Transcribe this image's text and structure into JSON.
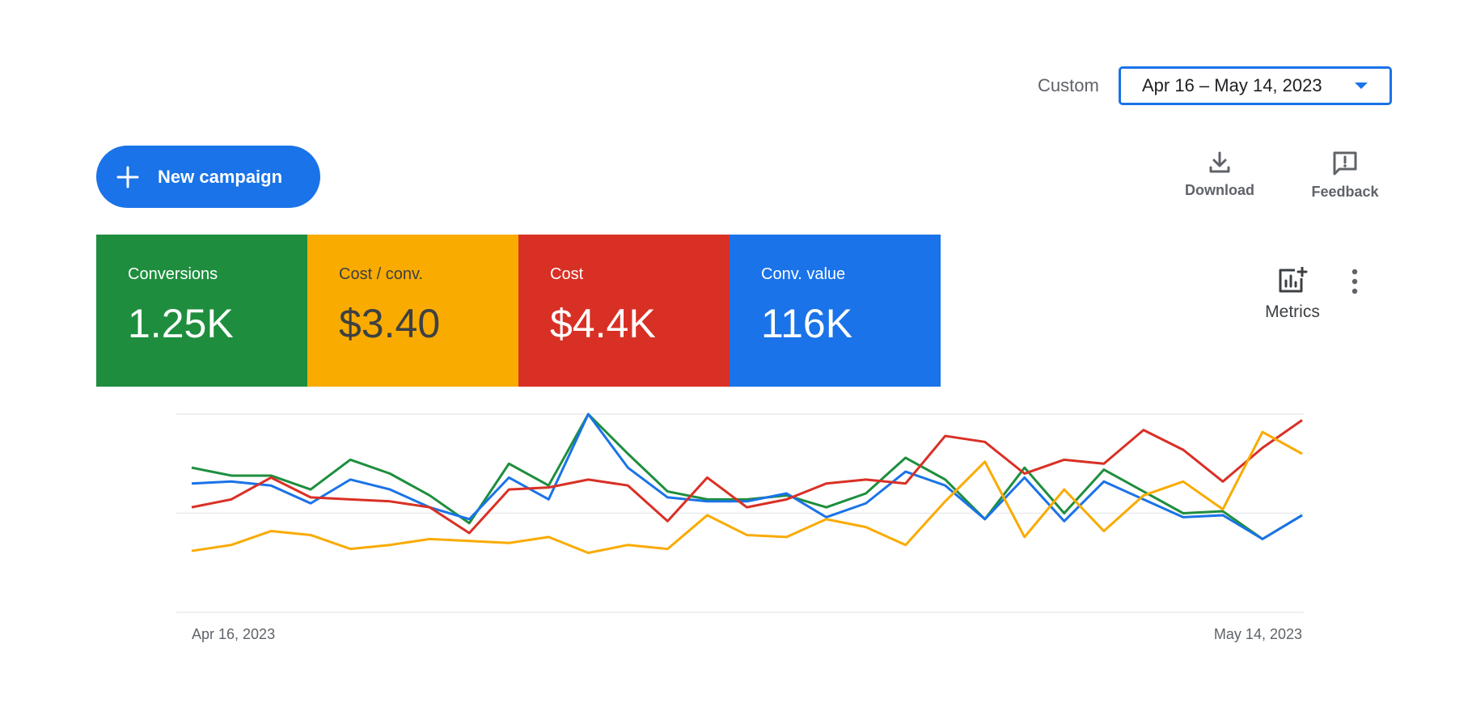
{
  "date_range": {
    "mode_label": "Custom",
    "value": "Apr 16 – May 14, 2023"
  },
  "toolbar": {
    "new_campaign_label": "New campaign",
    "download_label": "Download",
    "feedback_label": "Feedback",
    "metrics_label": "Metrics"
  },
  "scorecards": [
    {
      "title": "Conversions",
      "value": "1.25K",
      "color": "#1e8e3e"
    },
    {
      "title": "Cost / conv.",
      "value": "$3.40",
      "color": "#f9ab00"
    },
    {
      "title": "Cost",
      "value": "$4.4K",
      "color": "#d93025"
    },
    {
      "title": "Conv. value",
      "value": "116K",
      "color": "#1a73e8"
    }
  ],
  "icons": {
    "add": "plus-icon",
    "download": "download-icon",
    "feedback": "feedback-icon",
    "metrics": "add-chart-icon",
    "more": "more-vert-icon",
    "caret": "caret-down-icon"
  },
  "chart_data": {
    "type": "line",
    "x_start_label": "Apr 16, 2023",
    "x_end_label": "May 14, 2023",
    "x": [
      "Apr 16",
      "Apr 17",
      "Apr 18",
      "Apr 19",
      "Apr 20",
      "Apr 21",
      "Apr 22",
      "Apr 23",
      "Apr 24",
      "Apr 25",
      "Apr 26",
      "Apr 27",
      "Apr 28",
      "Apr 29",
      "Apr 30",
      "May 1",
      "May 2",
      "May 3",
      "May 4",
      "May 5",
      "May 6",
      "May 7",
      "May 8",
      "May 9",
      "May 10",
      "May 11",
      "May 12",
      "May 13",
      "May 14"
    ],
    "ylim": [
      0,
      100
    ],
    "grid": true,
    "series": [
      {
        "color": "#1e8e3e",
        "values": [
          73,
          69,
          69,
          62,
          77,
          70,
          59,
          45,
          75,
          64,
          100,
          80,
          61,
          57,
          57,
          59,
          53,
          60,
          78,
          67,
          47,
          73,
          50,
          72,
          61,
          50,
          51,
          37,
          49
        ]
      },
      {
        "color": "#1a73e8",
        "values": [
          65,
          66,
          64,
          55,
          67,
          62,
          53,
          47,
          68,
          57,
          100,
          73,
          58,
          56,
          56,
          60,
          48,
          55,
          71,
          64,
          47,
          68,
          46,
          66,
          57,
          48,
          49,
          37,
          49
        ]
      },
      {
        "color": "#d93025",
        "values": [
          53,
          57,
          68,
          58,
          57,
          56,
          53,
          40,
          62,
          63,
          67,
          64,
          46,
          68,
          53,
          57,
          65,
          67,
          65,
          89,
          86,
          70,
          77,
          75,
          92,
          82,
          66,
          83,
          97
        ]
      },
      {
        "color": "#f9ab00",
        "values": [
          31,
          34,
          41,
          39,
          32,
          34,
          37,
          36,
          35,
          38,
          30,
          34,
          32,
          49,
          39,
          38,
          47,
          43,
          34,
          56,
          76,
          38,
          62,
          41,
          59,
          66,
          52,
          91,
          80
        ]
      }
    ]
  }
}
